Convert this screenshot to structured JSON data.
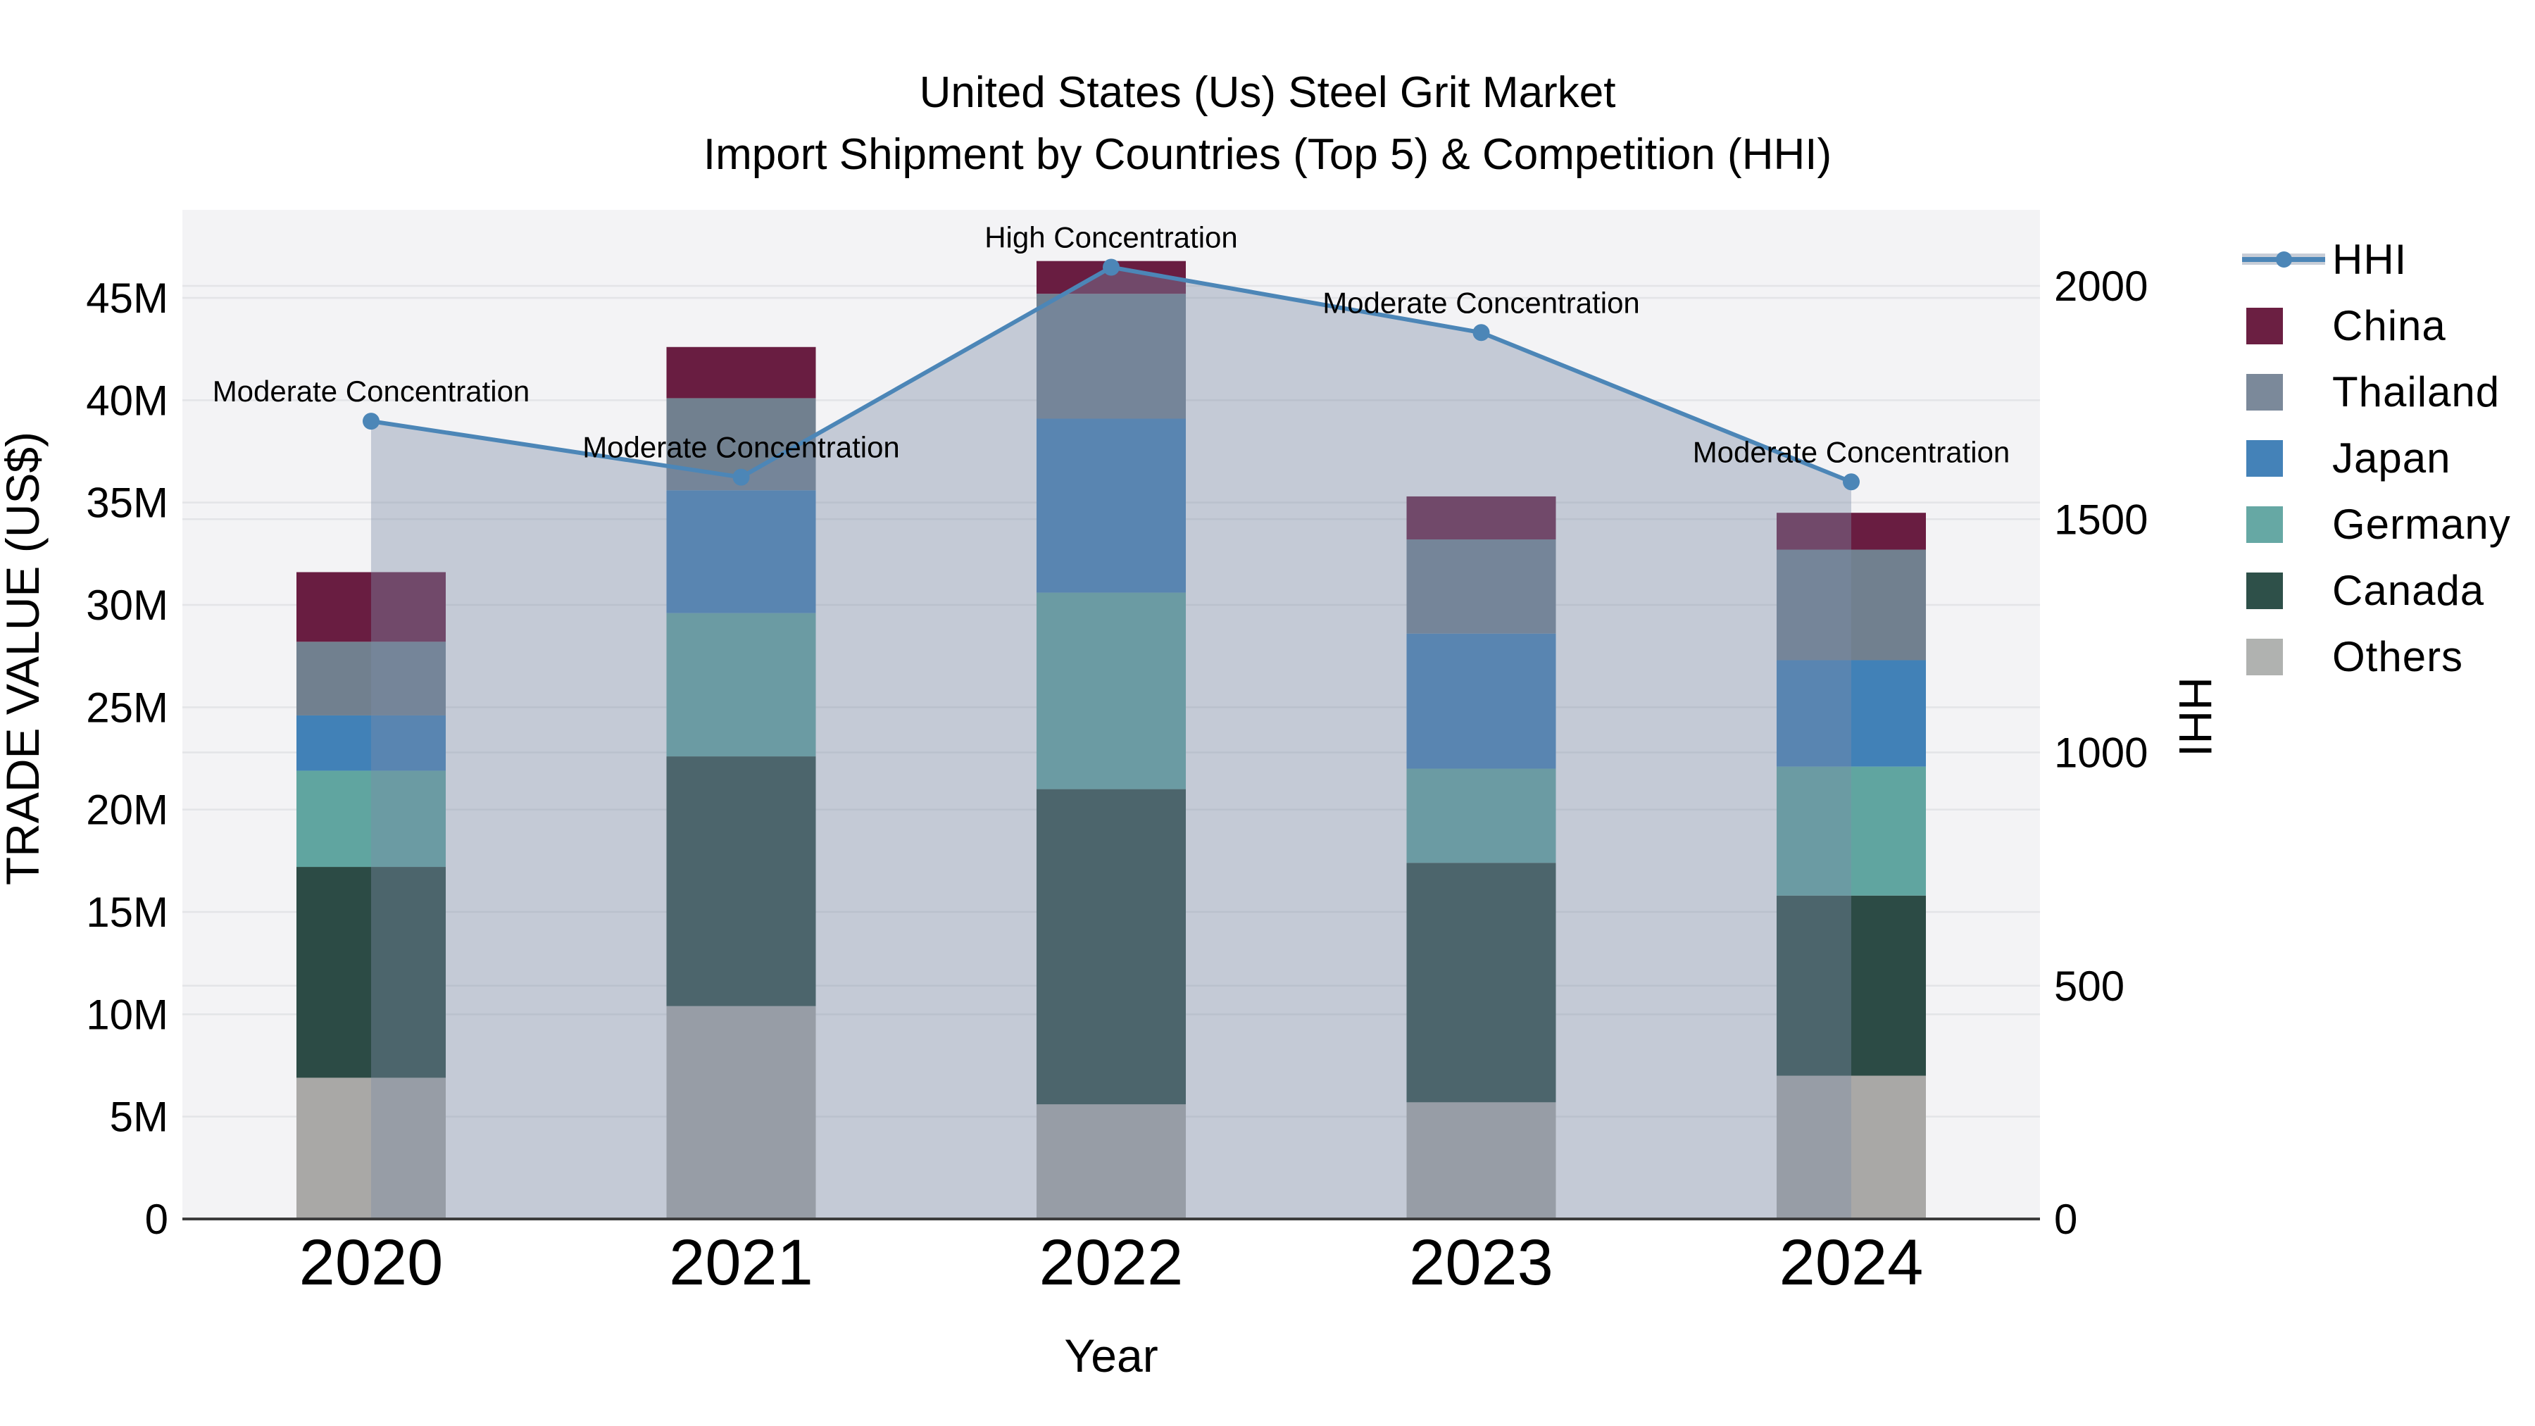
{
  "title": {
    "line1": "United States (Us) Steel Grit Market",
    "line2": "Import Shipment by Countries (Top 5) & Competition (HHI)"
  },
  "chart_data": {
    "type": "combo-stacked-bar-line",
    "categories": [
      "2020",
      "2021",
      "2022",
      "2023",
      "2024"
    ],
    "bar_value_unit": "Million US$",
    "series": [
      {
        "name": "Others",
        "color": "#a9a8a6",
        "values": [
          6.9,
          10.4,
          5.6,
          5.7,
          7.0
        ]
      },
      {
        "name": "Canada",
        "color": "#2c4b45",
        "values": [
          10.3,
          12.2,
          15.4,
          11.7,
          8.8
        ]
      },
      {
        "name": "Germany",
        "color": "#60a5a0",
        "values": [
          4.7,
          7.0,
          9.6,
          4.6,
          6.3
        ]
      },
      {
        "name": "Japan",
        "color": "#4181b7",
        "values": [
          2.7,
          6.0,
          8.5,
          6.6,
          5.2
        ]
      },
      {
        "name": "Thailand",
        "color": "#71808f",
        "values": [
          3.6,
          4.5,
          6.1,
          4.6,
          5.4
        ]
      },
      {
        "name": "China",
        "color": "#691d41",
        "values": [
          3.4,
          2.5,
          1.6,
          2.1,
          1.8
        ]
      }
    ],
    "stack_totals": [
      31.6,
      42.6,
      46.8,
      35.3,
      34.5
    ],
    "line_series": {
      "name": "HHI",
      "color": "#4c86b7",
      "area_fill": "rgba(124,141,167,0.40)",
      "values": [
        1710,
        1590,
        2040,
        1900,
        1580
      ]
    },
    "annotations": [
      {
        "category": "2020",
        "label": "Moderate Concentration"
      },
      {
        "category": "2021",
        "label": "Moderate Concentration"
      },
      {
        "category": "2022",
        "label": "High Concentration"
      },
      {
        "category": "2023",
        "label": "Moderate Concentration"
      },
      {
        "category": "2024",
        "label": "Moderate Concentration"
      }
    ],
    "axes": {
      "left": {
        "title": "TRADE VALUE (US$)",
        "ticks": [
          "0",
          "5M",
          "10M",
          "15M",
          "20M",
          "25M",
          "30M",
          "35M",
          "40M",
          "45M"
        ],
        "tick_values": [
          0,
          5,
          10,
          15,
          20,
          25,
          30,
          35,
          40,
          45
        ],
        "max": 45
      },
      "right": {
        "title": "HHI",
        "ticks": [
          "0",
          "500",
          "1000",
          "1500",
          "2000"
        ],
        "tick_values": [
          0,
          500,
          1000,
          1500,
          2000
        ],
        "max": 2000
      },
      "x": {
        "title": "Year"
      }
    },
    "grid": true,
    "legend_position": "right"
  },
  "legend": {
    "items": [
      {
        "label": "HHI",
        "type": "line",
        "color": "#4c86b7",
        "band_color": "#c7cdd7"
      },
      {
        "label": "China",
        "type": "swatch",
        "color": "#6b1f42"
      },
      {
        "label": "Thailand",
        "type": "swatch",
        "color": "#7b899a"
      },
      {
        "label": "Japan",
        "type": "swatch",
        "color": "#4482b8"
      },
      {
        "label": "Germany",
        "type": "swatch",
        "color": "#66a8a4"
      },
      {
        "label": "Canada",
        "type": "swatch",
        "color": "#2e5049"
      },
      {
        "label": "Others",
        "type": "swatch",
        "color": "#b0b2b0"
      }
    ]
  },
  "colors": {
    "plot_bg": "#f3f3f5",
    "grid": "#e3e4e7",
    "axis_line": "#3c3c3c",
    "text": "#000000"
  }
}
